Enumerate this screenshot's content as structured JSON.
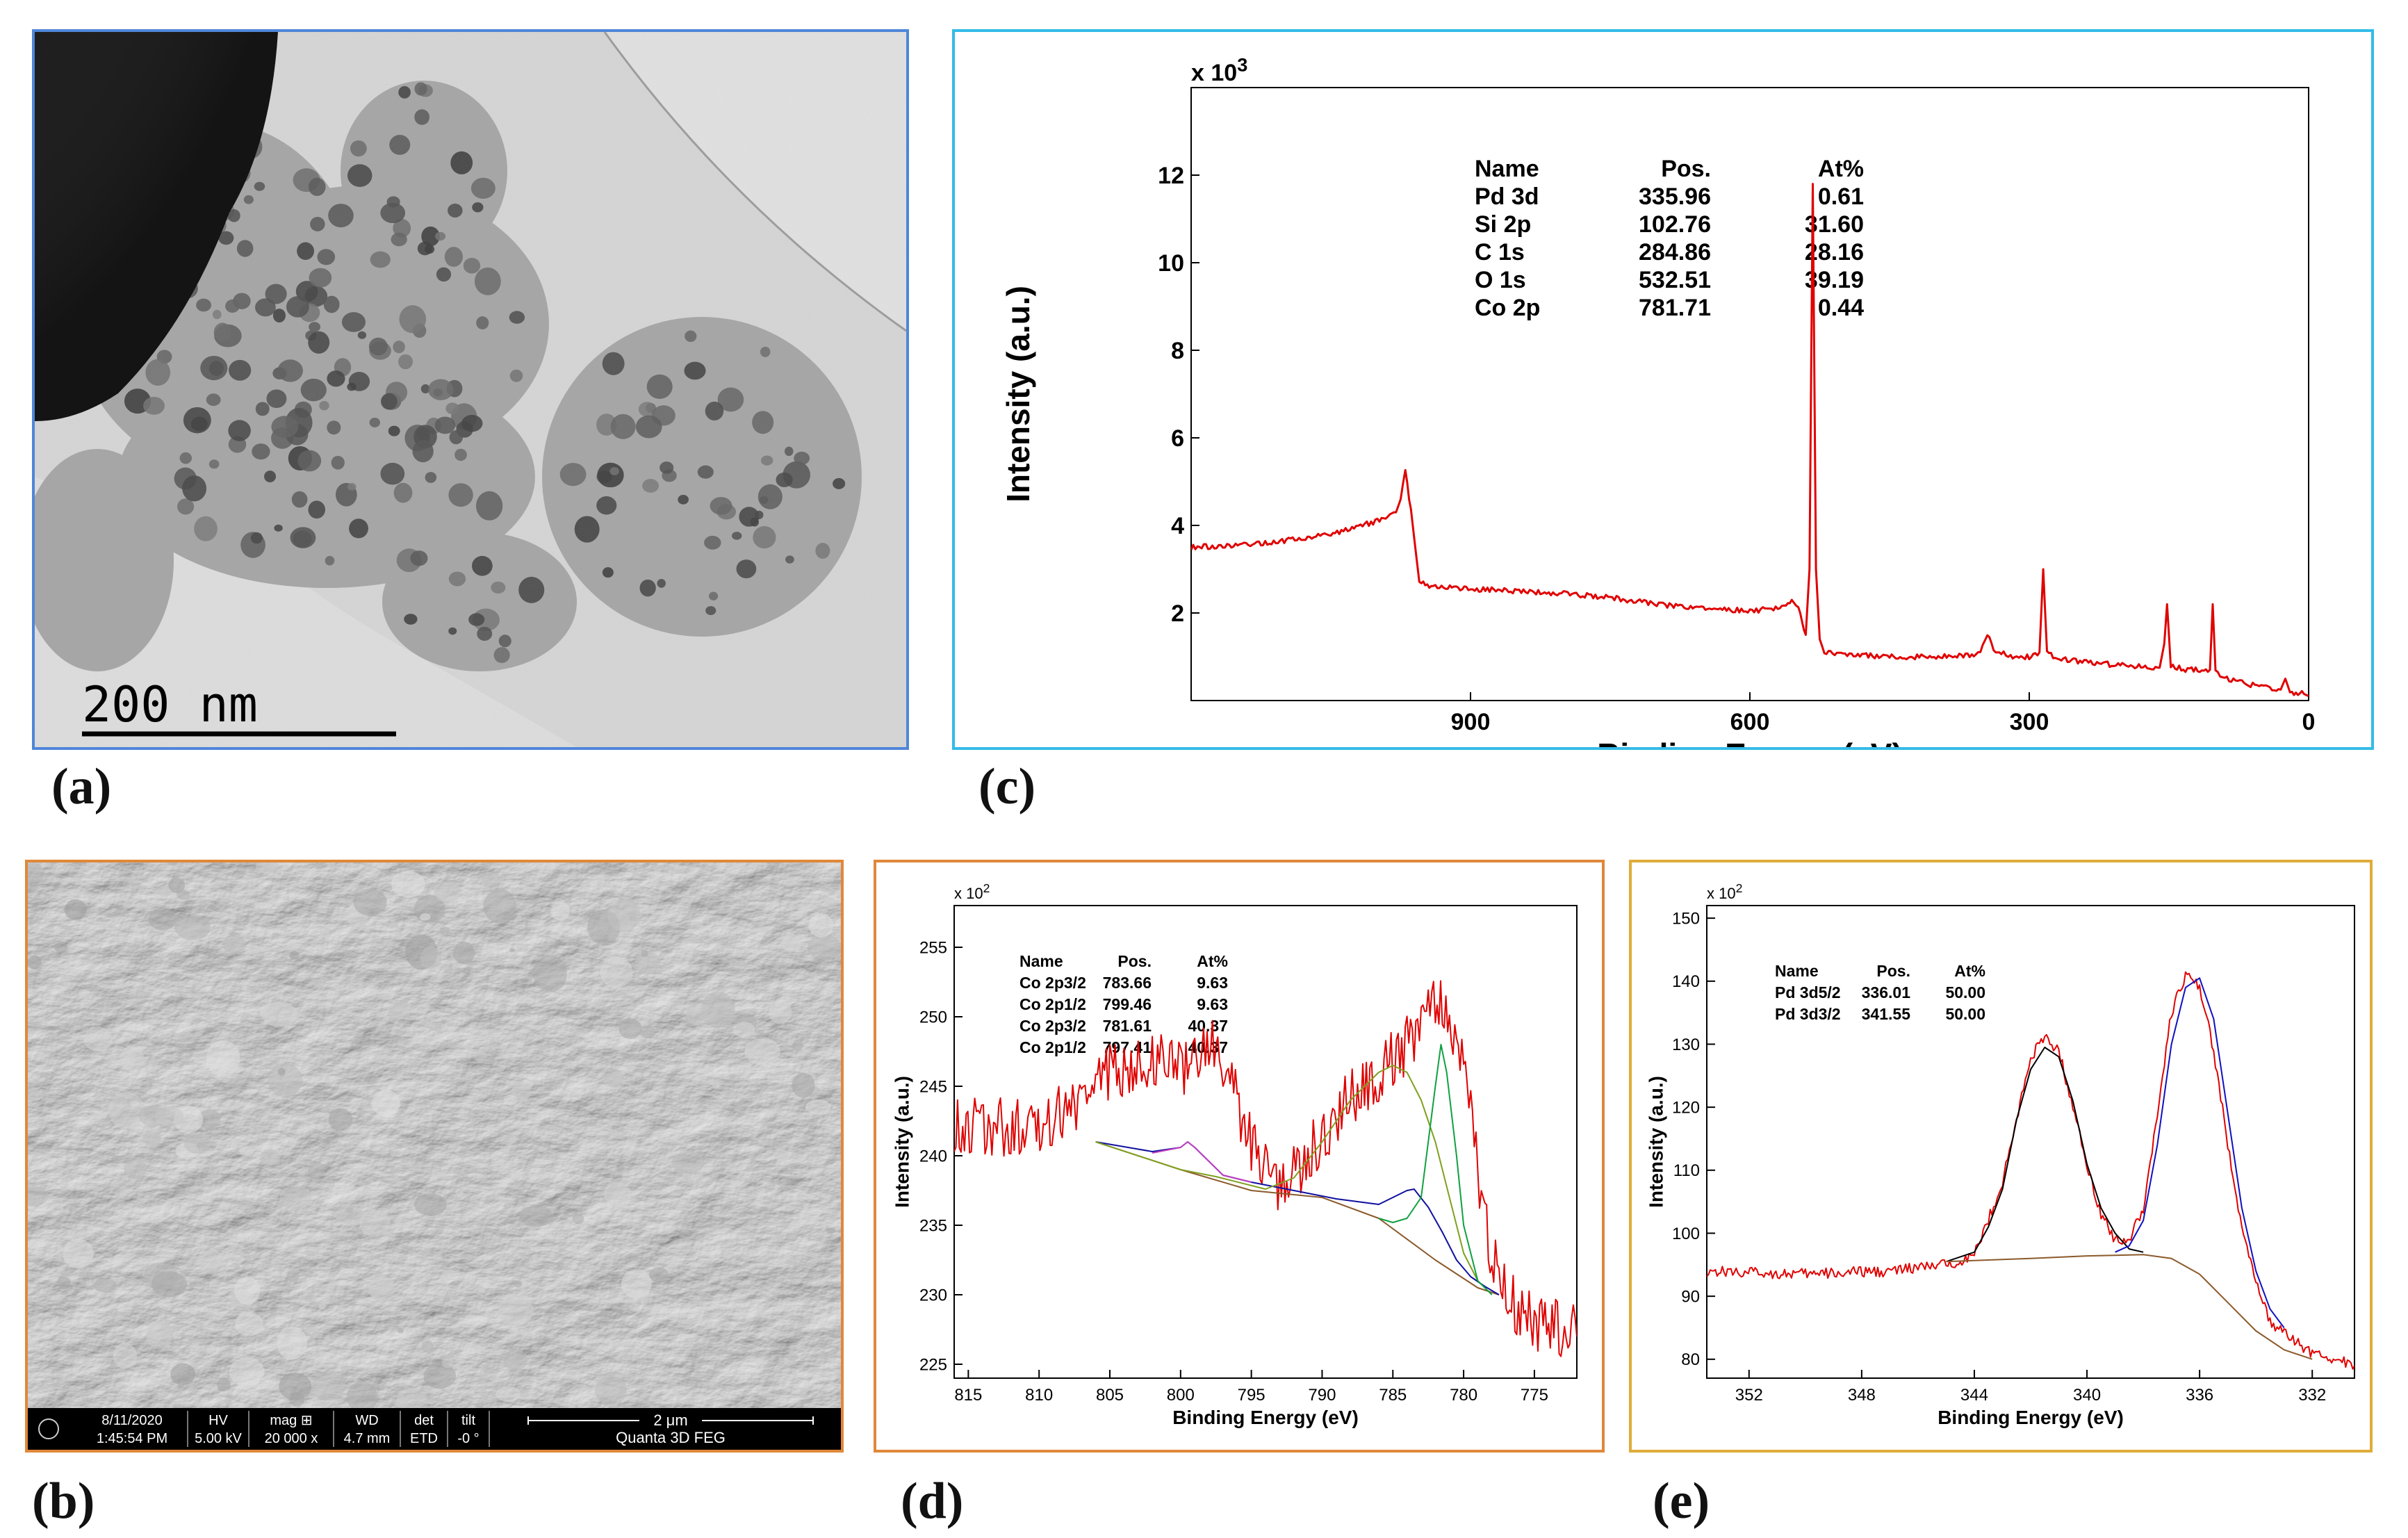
{
  "panel_labels": {
    "a": "(a)",
    "b": "(b)",
    "c": "(c)",
    "d": "(d)",
    "e": "(e)"
  },
  "colors": {
    "border_a": "#4f86d9",
    "border_c": "#33bbe8",
    "border_b": "#e0883a",
    "border_d": "#e0883a",
    "border_e": "#e0ac3a",
    "spectrum": "#e00000"
  },
  "tem": {
    "scale_label": "200 nm"
  },
  "sem": {
    "info_bar": {
      "date": "8/11/2020",
      "time": "1:45:54 PM",
      "hv_label": "HV",
      "hv_value": "5.00 kV",
      "mag_label": "mag ⊞",
      "mag_value": "20 000 x",
      "wd_label": "WD",
      "wd_value": "4.7 mm",
      "det_label": "det",
      "det_value": "ETD",
      "tilt_label": "tilt",
      "tilt_value": "-0 °",
      "scale_label": "2 μm",
      "instrument": "Quanta 3D FEG"
    }
  },
  "chart_data": [
    {
      "id": "c",
      "type": "line",
      "xlabel": "Binding Energy (eV)",
      "ylabel": "Intensity (a.u.)",
      "multiplier": "x 10",
      "multiplier_exp": "3",
      "xlim": [
        1200,
        0
      ],
      "ylim": [
        0,
        14
      ],
      "xticks": [
        900,
        600,
        300,
        0
      ],
      "yticks": [
        2,
        4,
        6,
        8,
        10,
        12
      ],
      "table": {
        "header": [
          "Name",
          "Pos.",
          "At%"
        ],
        "rows": [
          [
            "Pd 3d",
            "335.96",
            "0.61"
          ],
          [
            "Si 2p",
            "102.76",
            "31.60"
          ],
          [
            "C 1s",
            "284.86",
            "28.16"
          ],
          [
            "O 1s",
            "532.51",
            "39.19"
          ],
          [
            "Co 2p",
            "781.71",
            "0.44"
          ]
        ]
      },
      "series": [
        {
          "color": "#e00000",
          "x": [
            1200,
            1150,
            1100,
            1050,
            1000,
            980,
            975,
            970,
            962,
            955,
            940,
            900,
            850,
            800,
            750,
            700,
            650,
            600,
            570,
            555,
            548,
            540,
            536,
            532.5,
            529,
            525,
            520,
            500,
            450,
            400,
            355,
            345,
            336,
            330,
            320,
            300,
            289,
            285,
            281,
            270,
            250,
            200,
            160,
            155,
            152,
            148,
            130,
            106,
            103,
            100,
            90,
            60,
            30,
            25,
            20,
            5,
            0
          ],
          "y": [
            3.5,
            3.55,
            3.65,
            3.8,
            4.1,
            4.3,
            4.6,
            5.3,
            4.0,
            2.7,
            2.6,
            2.55,
            2.5,
            2.45,
            2.35,
            2.2,
            2.1,
            2.05,
            2.1,
            2.3,
            2.1,
            1.5,
            3.0,
            11.8,
            3.0,
            1.4,
            1.1,
            1.05,
            1.0,
            1.0,
            1.05,
            1.5,
            1.1,
            1.1,
            1.0,
            1.0,
            1.1,
            3.0,
            1.1,
            0.95,
            0.9,
            0.8,
            0.75,
            1.3,
            2.2,
            0.8,
            0.7,
            0.7,
            2.2,
            0.65,
            0.5,
            0.35,
            0.25,
            0.5,
            0.2,
            0.15,
            0.1
          ]
        }
      ]
    },
    {
      "id": "d",
      "type": "line",
      "xlabel": "Binding Energy (eV)",
      "ylabel": "Intensity (a.u.)",
      "multiplier": "x 10",
      "multiplier_exp": "2",
      "xlim": [
        816,
        772
      ],
      "ylim": [
        224,
        258
      ],
      "xticks": [
        815,
        810,
        805,
        800,
        795,
        790,
        785,
        780,
        775
      ],
      "yticks": [
        225,
        230,
        235,
        240,
        245,
        250,
        255
      ],
      "table": {
        "header": [
          "Name",
          "Pos.",
          "At%"
        ],
        "rows": [
          [
            "Co 2p3/2",
            "783.66",
            "9.63"
          ],
          [
            "Co 2p1/2",
            "799.46",
            "9.63"
          ],
          [
            "Co 2p3/2",
            "781.61",
            "40.37"
          ],
          [
            "Co 2p1/2",
            "797.41",
            "40.37"
          ]
        ]
      },
      "series": [
        {
          "color": "#e00000",
          "noise": 2.2,
          "x": [
            816,
            812,
            808,
            805,
            802,
            800,
            798,
            797,
            795,
            793,
            791,
            789,
            787,
            785,
            783,
            782,
            781,
            780,
            779,
            778,
            777,
            775,
            772
          ],
          "y": [
            242.5,
            242,
            243,
            246,
            247,
            246,
            248,
            246.5,
            241,
            238,
            240,
            243,
            245,
            247,
            249,
            251.5,
            250,
            246,
            239,
            233,
            230,
            228,
            227
          ]
        },
        {
          "color": "#8b5a2b",
          "x": [
            806,
            800,
            795,
            790,
            786,
            782,
            779,
            777.5
          ],
          "y": [
            241,
            239,
            237.5,
            237,
            235.5,
            232.5,
            230.5,
            230
          ]
        },
        {
          "color": "#1010a0",
          "x": [
            806,
            802,
            800,
            799.5,
            799,
            797,
            795,
            793,
            791,
            789,
            786,
            784,
            783.5,
            782.5,
            781.5,
            780.5,
            779.5,
            778.5,
            777.5
          ],
          "y": [
            241,
            240.3,
            240.6,
            241,
            240.6,
            238.6,
            238.1,
            237.7,
            237.3,
            236.9,
            236.5,
            237.5,
            237.6,
            236.3,
            234.5,
            232.5,
            231.3,
            230.6,
            230
          ]
        },
        {
          "color": "#c040c0",
          "x": [
            802,
            800,
            799.5,
            799,
            797,
            795
          ],
          "y": [
            240.2,
            240.6,
            241,
            240.6,
            238.6,
            238.1
          ]
        },
        {
          "color": "#80a020",
          "x": [
            806,
            800,
            797.5,
            794,
            792,
            790,
            788,
            786,
            785,
            784,
            783.5,
            783,
            782,
            781,
            780,
            779
          ],
          "y": [
            241,
            239,
            238.5,
            237.6,
            238.4,
            241,
            244,
            246,
            246.5,
            246,
            245,
            244,
            241,
            237,
            233,
            231
          ]
        },
        {
          "color": "#10a040",
          "x": [
            786,
            785,
            784,
            783,
            782.5,
            782,
            781.6,
            781.2,
            780.5,
            780,
            779,
            778
          ],
          "y": [
            235.5,
            235.2,
            235.5,
            237,
            241,
            245,
            248,
            246,
            240,
            235,
            231,
            230
          ]
        }
      ]
    },
    {
      "id": "e",
      "type": "line",
      "xlabel": "Binding Energy (eV)",
      "ylabel": "Intensity (a.u.)",
      "multiplier": "x 10",
      "multiplier_exp": "2",
      "xlim": [
        353.5,
        330.5
      ],
      "ylim": [
        77,
        152
      ],
      "xticks": [
        352,
        348,
        344,
        340,
        336,
        332
      ],
      "yticks": [
        80,
        90,
        100,
        110,
        120,
        130,
        140,
        150
      ],
      "table": {
        "header": [
          "Name",
          "Pos.",
          "At%"
        ],
        "rows": [
          [
            "Pd 3d5/2",
            "336.01",
            "50.00"
          ],
          [
            "Pd 3d3/2",
            "341.55",
            "50.00"
          ]
        ]
      },
      "series": [
        {
          "color": "#e00000",
          "noise": 0.9,
          "x": [
            353.5,
            350,
            347,
            345,
            344,
            343,
            342,
            341.5,
            341,
            340,
            339.5,
            339,
            338.5,
            338,
            337.5,
            337,
            336.5,
            336,
            335.5,
            335,
            334.5,
            334,
            333.5,
            333,
            332,
            330.5
          ],
          "y": [
            94,
            93.5,
            94,
            95,
            96.5,
            108,
            128,
            131,
            129,
            111,
            103,
            99,
            99,
            104,
            119,
            135,
            141,
            139,
            129,
            114,
            101,
            92,
            86,
            84,
            81,
            79
          ]
        },
        {
          "color": "#000000",
          "x": [
            345,
            344,
            343.5,
            343,
            342.5,
            342,
            341.5,
            341,
            340.5,
            340,
            339.5,
            339,
            338.5,
            338
          ],
          "y": [
            95.5,
            97,
            101,
            107,
            118,
            126,
            129.5,
            128,
            121,
            111,
            104,
            100,
            97.5,
            97
          ]
        },
        {
          "color": "#1010c0",
          "x": [
            339,
            338.5,
            338,
            337.5,
            337,
            336.5,
            336,
            335.5,
            335,
            334.5,
            334,
            333.5,
            333
          ],
          "y": [
            97,
            98,
            102,
            114,
            130,
            139,
            140.5,
            134,
            119,
            104,
            94,
            88,
            85
          ]
        },
        {
          "color": "#8b5a2b",
          "x": [
            345,
            342,
            340,
            338,
            337,
            336,
            335,
            334,
            333,
            332
          ],
          "y": [
            95.5,
            96,
            96.4,
            96.6,
            96,
            93.5,
            89,
            84.5,
            81.5,
            80
          ]
        }
      ]
    }
  ]
}
